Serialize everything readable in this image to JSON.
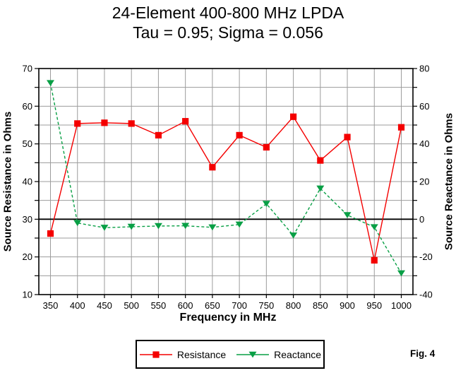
{
  "chart_data": {
    "type": "line",
    "title_line1": "24-Element 400-800 MHz LPDA",
    "title_line2": "Tau = 0.95; Sigma = 0.056",
    "x_label": "Frequency in MHz",
    "y_left_label": "Source Resistance in Ohms",
    "y_right_label": "Source Reactance in Ohms",
    "x_categories": [
      350,
      400,
      450,
      500,
      550,
      600,
      650,
      700,
      750,
      800,
      850,
      900,
      950,
      1000
    ],
    "y_left_range": [
      10,
      70
    ],
    "y_left_major": 10,
    "y_left_minor": 5,
    "y_right_range": [
      -40,
      80
    ],
    "y_right_major": 20,
    "y_right_minor": 10,
    "zero_line_right_value": 0,
    "grid": true,
    "grid_color": "#9C9C9C",
    "axis_color": "#000000",
    "legend_position": "bottom-center",
    "series": [
      {
        "name": "Resistance",
        "axis": "left",
        "color": "#F40000",
        "marker": "square",
        "line": "solid",
        "values": [
          26.2,
          55.4,
          55.6,
          55.4,
          52.3,
          56.0,
          43.8,
          52.3,
          49.1,
          57.2,
          45.6,
          51.8,
          19.1,
          54.4
        ]
      },
      {
        "name": "Reactance",
        "axis": "right",
        "color": "#089F45",
        "marker": "triangle-down",
        "line": "dashed",
        "values": [
          72.3,
          -2.0,
          -4.5,
          -4.0,
          -3.6,
          -3.5,
          -4.3,
          -2.8,
          8.2,
          -8.6,
          16.3,
          2.2,
          -4.2,
          -28.7
        ]
      }
    ]
  },
  "figure_caption": "Fig. 4"
}
